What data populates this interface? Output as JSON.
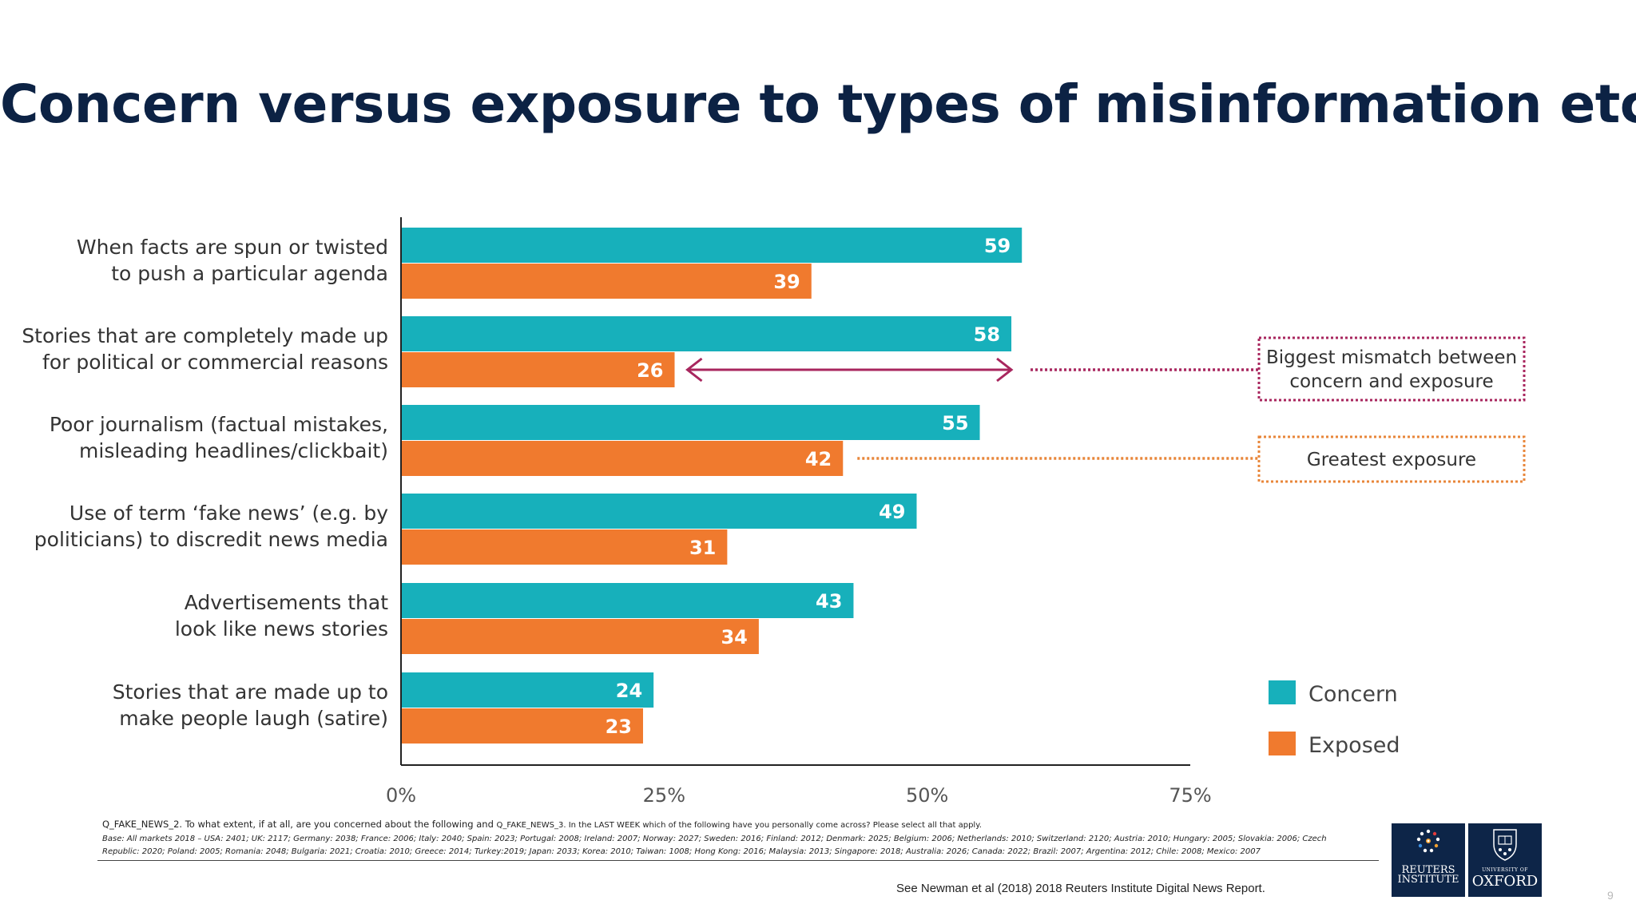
{
  "slide": {
    "title": "Concern versus exposure to types of misinformation etc",
    "page_number": "9"
  },
  "chart_data": {
    "type": "bar",
    "orientation": "horizontal",
    "categories": [
      [
        "When facts are spun or twisted",
        "to push a particular agenda"
      ],
      [
        "Stories that are completely made up",
        "for political or commercial reasons"
      ],
      [
        "Poor journalism (factual mistakes,",
        "misleading headlines/clickbait)"
      ],
      [
        "Use of term ‘fake news’ (e.g. by",
        "politicians) to discredit news media"
      ],
      [
        "Advertisements that",
        "look like news stories"
      ],
      [
        "Stories that are made up to",
        "make people laugh (satire)"
      ]
    ],
    "series": [
      {
        "name": "Concern",
        "color": "#17b0bb",
        "values": [
          59,
          58,
          55,
          49,
          43,
          24
        ]
      },
      {
        "name": "Exposed",
        "color": "#f07a2e",
        "values": [
          39,
          26,
          42,
          31,
          34,
          23
        ]
      }
    ],
    "xlim": [
      0,
      75
    ],
    "x_ticks": [
      0,
      25,
      50,
      75
    ],
    "x_tick_labels": [
      "0%",
      "25%",
      "50%",
      "75%"
    ],
    "grid": false,
    "legend_position": "bottom-right",
    "annotations": [
      {
        "text_lines": [
          "Biggest mismatch between",
          "concern and exposure"
        ],
        "color": "#a8265e",
        "category_index": 1
      },
      {
        "text_lines": [
          "Greatest exposure"
        ],
        "color": "#e8863a",
        "category_index": 2
      }
    ]
  },
  "footer": {
    "question_part1": "Q_FAKE_NEWS_2. To what extent, if at all, are you concerned about the following and ",
    "question_part2": "Q_FAKE_NEWS_3. In the LAST WEEK which of the following have you personally come across? Please select all that apply.",
    "base": "Base: All markets 2018 – USA: 2401; UK: 2117; Germany: 2038; France: 2006; Italy: 2040; Spain: 2023; Portugal: 2008; Ireland: 2007; Norway: 2027; Sweden: 2016; Finland: 2012; Denmark: 2025; Belgium: 2006; Netherlands: 2010; Switzerland: 2120; Austria: 2010; Hungary: 2005; Slovakia: 2006; Czech Republic: 2020; Poland: 2005; Romania: 2048; Bulgaria: 2021; Croatia: 2010; Greece: 2014; Turkey:2019; Japan: 2033; Korea: 2010; Taiwan: 1008; Hong Kong: 2016; Malaysia: 2013; Singapore: 2018; Australia: 2026; Canada: 2022; Brazil: 2007; Argentina: 2012; Chile: 2008; Mexico: 2007",
    "source": "See Newman et al (2018) 2018 Reuters Institute Digital News Report."
  },
  "logos": {
    "reuters": {
      "line1": "REUTERS",
      "line2": "INSTITUTE"
    },
    "oxford": {
      "line1": "UNIVERSITY OF",
      "line2": "OXFORD"
    }
  }
}
